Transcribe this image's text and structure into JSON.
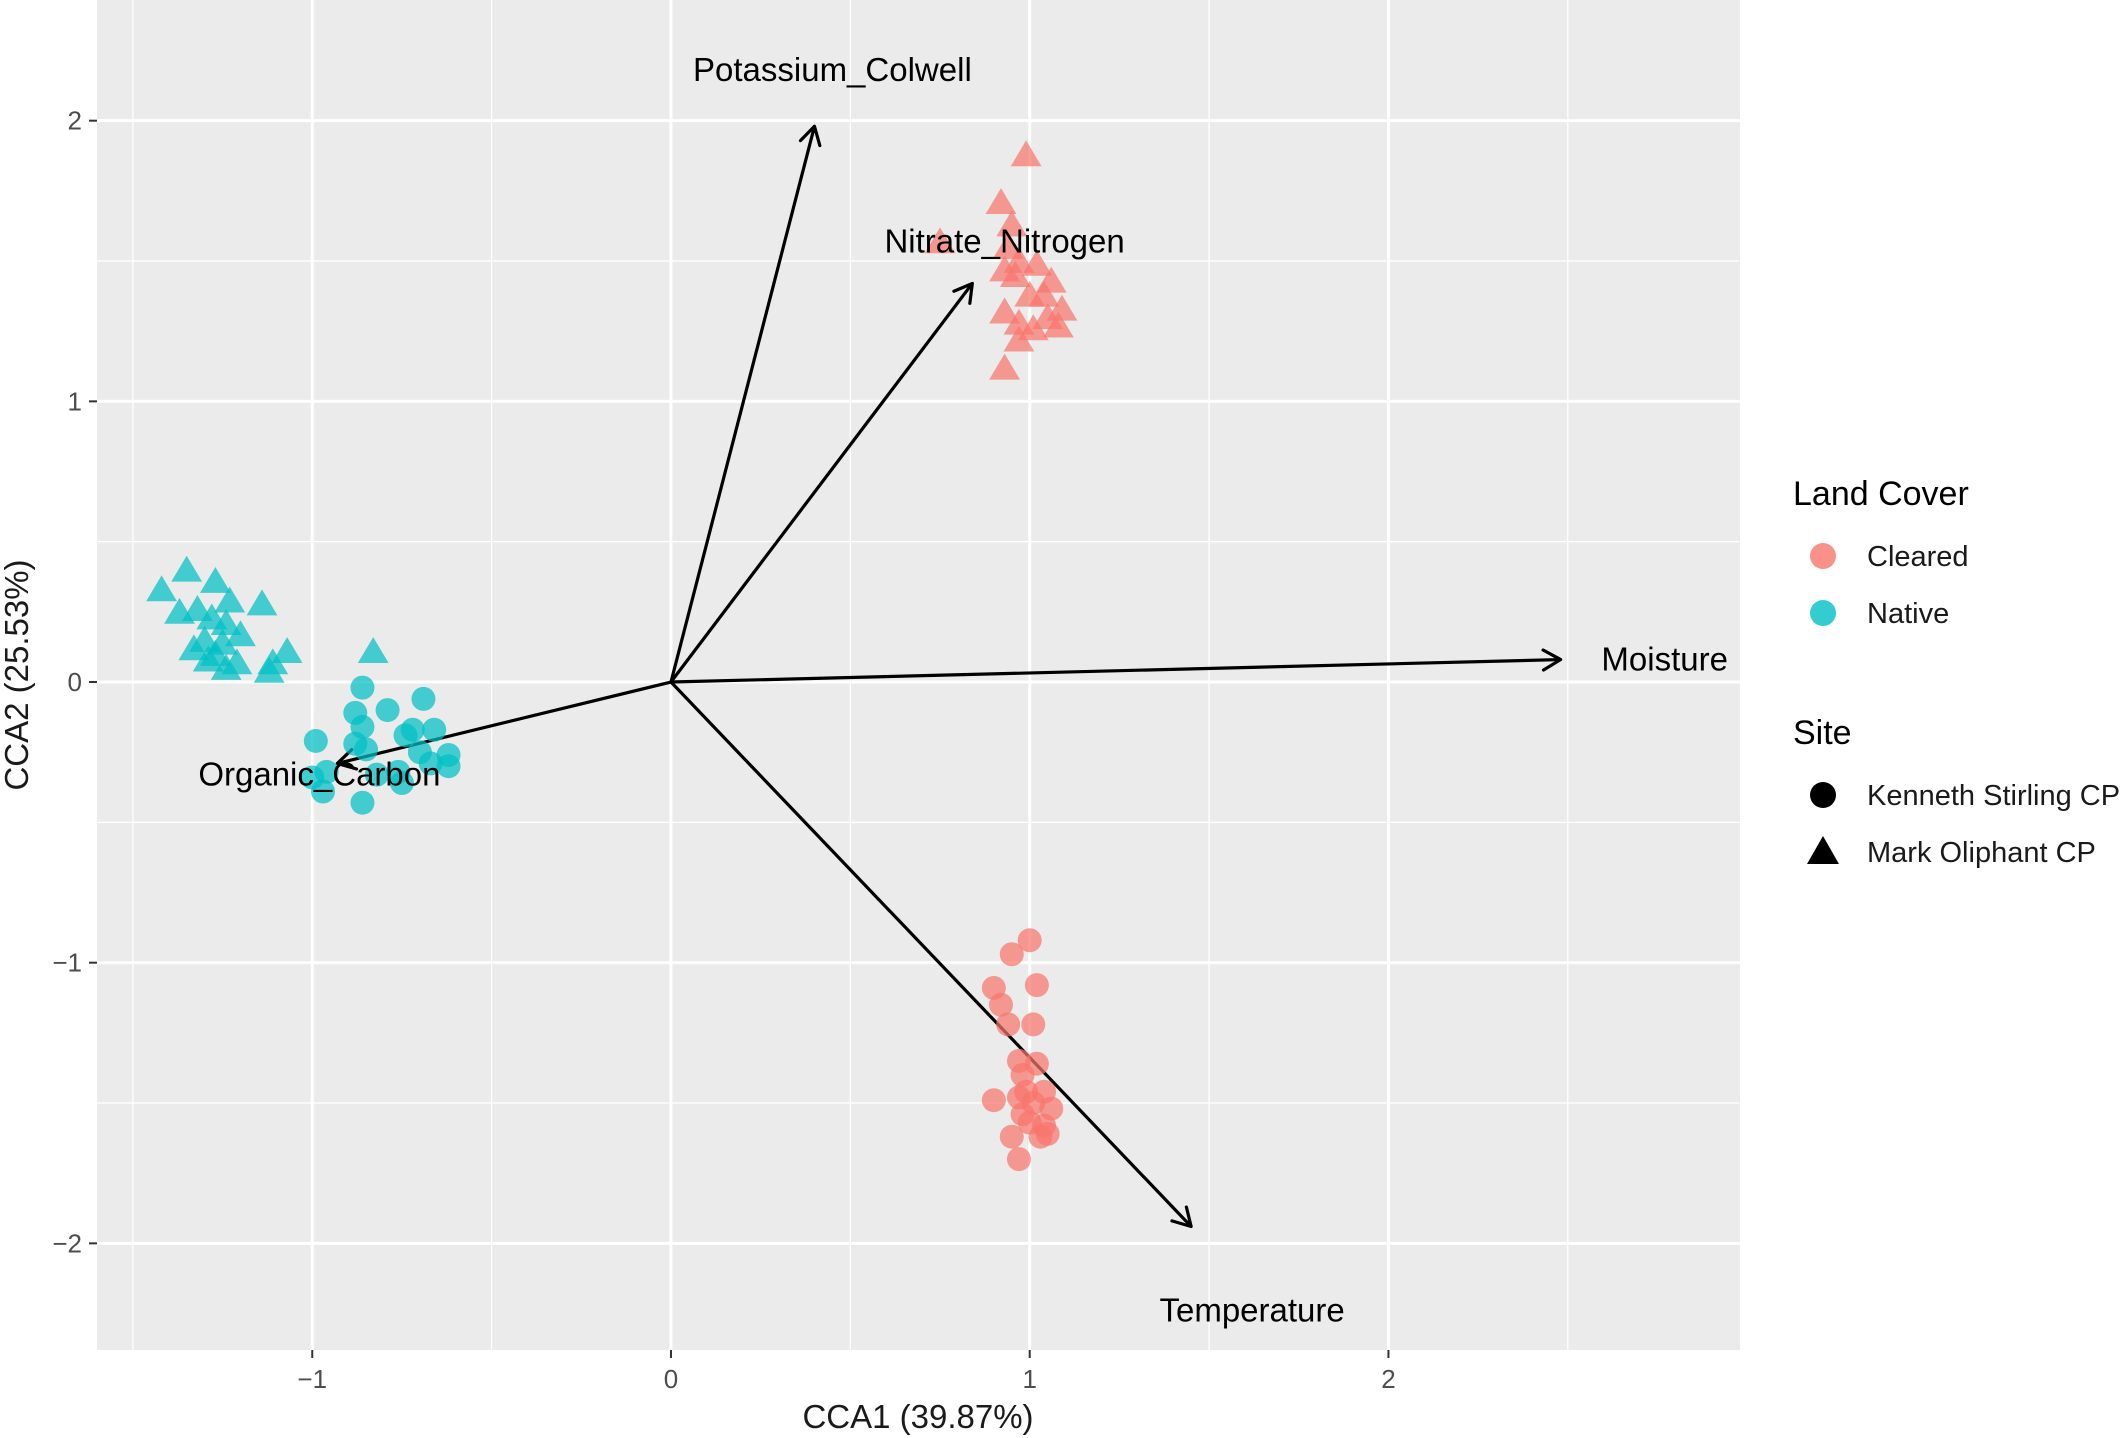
{
  "chart_data": {
    "type": "scatter",
    "xlabel": "CCA1 (39.87%)",
    "ylabel": "CCA2 (25.53%)",
    "xlim": [
      -1.6,
      2.98
    ],
    "ylim": [
      -2.38,
      2.43
    ],
    "x_ticks": [
      -1,
      0,
      1,
      2
    ],
    "x_tick_labels": [
      "−1",
      "0",
      "1",
      "2"
    ],
    "y_ticks": [
      -2,
      -1,
      0,
      1,
      2
    ],
    "y_tick_labels": [
      "−2",
      "−1",
      "0",
      "1",
      "2"
    ],
    "grid": true,
    "legend_placement": "right",
    "colors": {
      "Cleared": "#F8766D",
      "Native": "#00BFC4"
    },
    "legend": {
      "color_title": "Land Cover",
      "color_items": [
        "Cleared",
        "Native"
      ],
      "shape_title": "Site",
      "shape_items": [
        {
          "label": "Kenneth Stirling CP",
          "shape": "circle"
        },
        {
          "label": "Mark Oliphant CP",
          "shape": "triangle"
        }
      ]
    },
    "vectors": [
      {
        "label": "Potassium_Colwell",
        "x": 0.4,
        "y": 1.98,
        "label_x": 0.45,
        "label_y": 2.18
      },
      {
        "label": "Nitrate_Nitrogen",
        "x": 0.84,
        "y": 1.42,
        "label_x": 0.93,
        "label_y": 1.57
      },
      {
        "label": "Moisture",
        "x": 2.48,
        "y": 0.08,
        "label_x": 2.77,
        "label_y": 0.08
      },
      {
        "label": "Organic_Carbon",
        "x": -0.93,
        "y": -0.29,
        "label_x": -0.98,
        "label_y": -0.33
      },
      {
        "label": "Temperature",
        "x": 1.45,
        "y": -1.94,
        "label_x": 1.62,
        "label_y": -2.24
      }
    ],
    "series": [
      {
        "name": "Cleared",
        "shape": "triangle",
        "site": "Mark Oliphant CP",
        "points": [
          [
            0.99,
            1.88
          ],
          [
            0.92,
            1.71
          ],
          [
            0.95,
            1.63
          ],
          [
            0.94,
            1.55
          ],
          [
            0.75,
            1.57
          ],
          [
            0.97,
            1.5
          ],
          [
            0.93,
            1.47
          ],
          [
            1.02,
            1.49
          ],
          [
            0.96,
            1.45
          ],
          [
            1.0,
            1.38
          ],
          [
            1.06,
            1.43
          ],
          [
            1.04,
            1.38
          ],
          [
            1.09,
            1.33
          ],
          [
            0.93,
            1.32
          ],
          [
            0.97,
            1.28
          ],
          [
            1.05,
            1.3
          ],
          [
            1.08,
            1.27
          ],
          [
            1.01,
            1.26
          ],
          [
            0.97,
            1.22
          ],
          [
            0.93,
            1.12
          ]
        ]
      },
      {
        "name": "Cleared",
        "shape": "circle",
        "site": "Kenneth Stirling CP",
        "points": [
          [
            1.0,
            -0.92
          ],
          [
            0.95,
            -0.97
          ],
          [
            1.02,
            -1.08
          ],
          [
            0.9,
            -1.09
          ],
          [
            0.92,
            -1.15
          ],
          [
            0.94,
            -1.22
          ],
          [
            1.01,
            -1.22
          ],
          [
            0.97,
            -1.35
          ],
          [
            1.02,
            -1.36
          ],
          [
            0.98,
            -1.4
          ],
          [
            0.99,
            -1.46
          ],
          [
            1.04,
            -1.46
          ],
          [
            0.97,
            -1.48
          ],
          [
            0.9,
            -1.49
          ],
          [
            1.01,
            -1.5
          ],
          [
            1.06,
            -1.52
          ],
          [
            0.98,
            -1.54
          ],
          [
            1.0,
            -1.57
          ],
          [
            1.04,
            -1.58
          ],
          [
            1.05,
            -1.61
          ],
          [
            0.95,
            -1.62
          ],
          [
            1.03,
            -1.62
          ],
          [
            0.97,
            -1.7
          ]
        ]
      },
      {
        "name": "Native",
        "shape": "triangle",
        "site": "Mark Oliphant CP",
        "points": [
          [
            -1.35,
            0.4
          ],
          [
            -1.42,
            0.33
          ],
          [
            -1.27,
            0.36
          ],
          [
            -1.32,
            0.26
          ],
          [
            -1.23,
            0.29
          ],
          [
            -1.14,
            0.28
          ],
          [
            -1.28,
            0.23
          ],
          [
            -1.24,
            0.21
          ],
          [
            -1.37,
            0.25
          ],
          [
            -1.2,
            0.17
          ],
          [
            -1.25,
            0.14
          ],
          [
            -1.3,
            0.15
          ],
          [
            -1.33,
            0.12
          ],
          [
            -1.27,
            0.1
          ],
          [
            -1.29,
            0.08
          ],
          [
            -1.21,
            0.07
          ],
          [
            -1.07,
            0.11
          ],
          [
            -1.11,
            0.07
          ],
          [
            -1.24,
            0.05
          ],
          [
            -1.12,
            0.04
          ],
          [
            -0.83,
            0.11
          ]
        ]
      },
      {
        "name": "Native",
        "shape": "circle",
        "site": "Kenneth Stirling CP",
        "points": [
          [
            -0.86,
            -0.02
          ],
          [
            -0.69,
            -0.06
          ],
          [
            -0.88,
            -0.11
          ],
          [
            -0.79,
            -0.1
          ],
          [
            -0.72,
            -0.17
          ],
          [
            -0.66,
            -0.17
          ],
          [
            -0.74,
            -0.19
          ],
          [
            -0.86,
            -0.16
          ],
          [
            -0.99,
            -0.21
          ],
          [
            -0.88,
            -0.22
          ],
          [
            -0.85,
            -0.24
          ],
          [
            -0.7,
            -0.25
          ],
          [
            -0.62,
            -0.26
          ],
          [
            -0.67,
            -0.29
          ],
          [
            -0.62,
            -0.3
          ],
          [
            -0.96,
            -0.32
          ],
          [
            -1.0,
            -0.34
          ],
          [
            -0.82,
            -0.33
          ],
          [
            -0.76,
            -0.32
          ],
          [
            -0.75,
            -0.36
          ],
          [
            -0.97,
            -0.39
          ],
          [
            -0.86,
            -0.43
          ]
        ]
      }
    ]
  }
}
